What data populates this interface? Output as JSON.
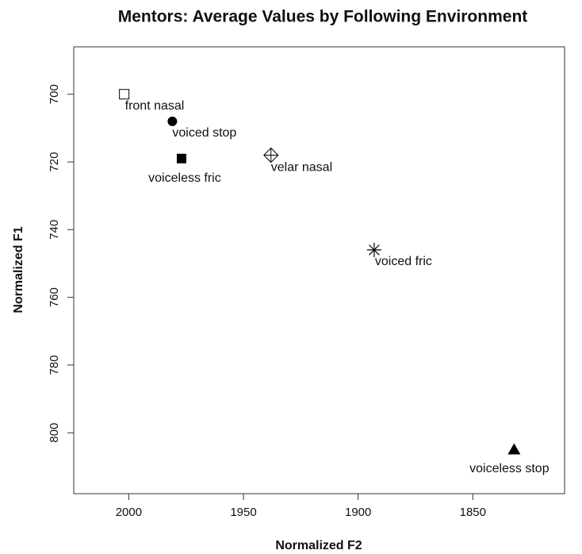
{
  "chart_data": {
    "type": "scatter",
    "title": "Mentors: Average Values by Following Environment",
    "x_label": "Normalized F2",
    "y_label": "Normalized F1",
    "labels": [
      "front nasal",
      "voiced stop",
      "voiceless fric",
      "velar nasal",
      "voiced fric",
      "voiceless stop"
    ],
    "markers": [
      "open-square",
      "filled-circle",
      "filled-square",
      "diamond-plus",
      "asterisk",
      "filled-triangle"
    ],
    "x": [
      2002,
      1981,
      1977,
      1938,
      1893,
      1832
    ],
    "y": [
      700,
      708,
      719,
      718,
      746,
      805
    ],
    "color": "#000000",
    "xlim": [
      2024,
      1810
    ],
    "ylim": [
      818,
      686
    ],
    "xticks": [
      2000,
      1950,
      1900,
      1850
    ],
    "yticks": [
      700,
      720,
      740,
      760,
      780,
      800
    ],
    "grid": false
  }
}
